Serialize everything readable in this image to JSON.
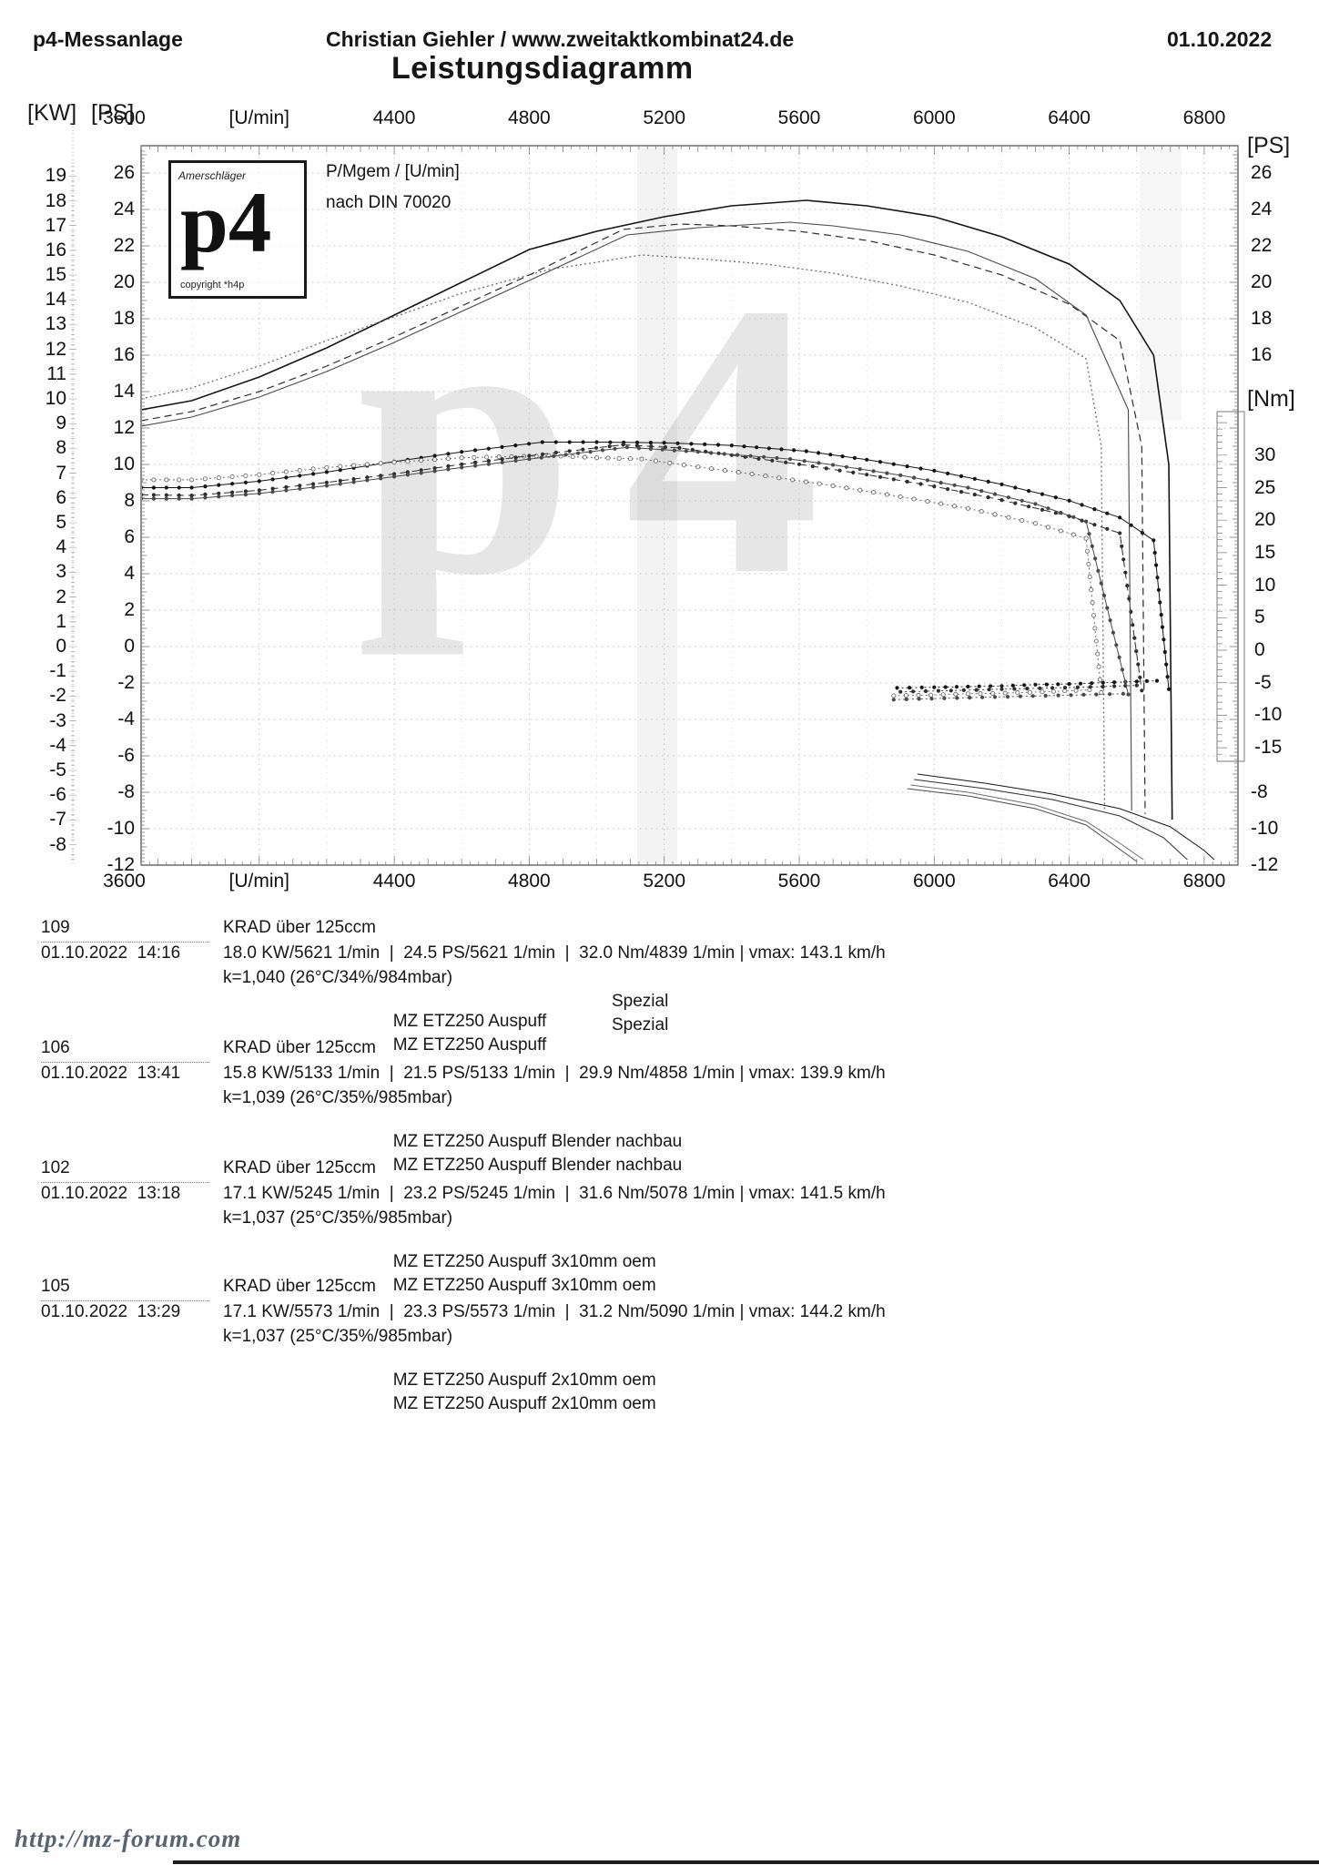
{
  "header": {
    "left": "p4-Messanlage",
    "center": "Christian Giehler / www.zweitaktkombinat24.de",
    "right": "01.10.2022",
    "title": "Leistungsdiagramm"
  },
  "logo": {
    "top": "Amerschläger",
    "main": "p4",
    "bottom": "copyright *h4p"
  },
  "watermark": "p4",
  "footer": {
    "link": "http://mz-forum.com"
  },
  "chart_data": {
    "type": "line",
    "title": "Leistungsdiagramm",
    "legend": [
      "P/Mgem / [U/min]",
      "nach DIN 70020"
    ],
    "legend_position": "top-left",
    "grid": true,
    "x_axis": {
      "label": "[U/min]",
      "min": 3600,
      "max": 6900,
      "tick_labels": [
        "3600",
        "[U/min]",
        "4400",
        "4800",
        "5200",
        "5600",
        "6000",
        "6400",
        "6800"
      ],
      "tick_rpm": [
        3600,
        4000,
        4400,
        4800,
        5200,
        5600,
        6000,
        6400,
        6800
      ]
    },
    "y_axis_kw": {
      "label": "[KW]",
      "ticks": [
        19,
        18,
        17,
        16,
        15,
        14,
        13,
        12,
        11,
        10,
        9,
        8,
        7,
        6,
        5,
        4,
        3,
        2,
        1,
        0,
        -1,
        -2,
        -3,
        -4,
        -5,
        -6,
        -7,
        -8
      ]
    },
    "y_axis_ps": {
      "label": "[PS]",
      "min": -12,
      "max": 26,
      "ticks_left": [
        26,
        24,
        22,
        20,
        18,
        16,
        14,
        12,
        10,
        8,
        6,
        4,
        2,
        0,
        -2,
        -4,
        -6,
        -8,
        -10,
        -12
      ],
      "ticks_right_top": [
        26,
        24,
        22,
        20,
        18,
        16
      ],
      "ticks_right_bottom": [
        -8,
        -10,
        -12
      ]
    },
    "y_axis_nm": {
      "label": "[Nm]",
      "ticks": [
        30,
        25,
        20,
        15,
        10,
        5,
        0,
        -5,
        -10,
        -15
      ]
    },
    "series": [
      {
        "run": "109",
        "name": "MZ ETZ250 Auspuff Spezial",
        "color": "#141414",
        "dash": "",
        "width": 1.6,
        "marker": "filled",
        "peak": {
          "kw": 18.0,
          "kw_rpm": 5621,
          "ps": 24.5,
          "ps_rpm": 5621,
          "nm": 32.0,
          "nm_rpm": 4839,
          "vmax_kmh": 143.1
        },
        "power_rpm": [
          3650,
          3800,
          4000,
          4200,
          4400,
          4600,
          4800,
          5000,
          5200,
          5400,
          5621,
          5800,
          6000,
          6200,
          6400,
          6550,
          6650,
          6695,
          6705
        ],
        "power_ps": [
          13.0,
          13.5,
          14.8,
          16.4,
          18.2,
          20.0,
          21.8,
          22.8,
          23.6,
          24.2,
          24.5,
          24.2,
          23.6,
          22.5,
          21.0,
          19.0,
          16.0,
          10.0,
          -9.5
        ],
        "torque_rpm": [
          3650,
          3800,
          4000,
          4200,
          4400,
          4600,
          4839,
          5000,
          5200,
          5400,
          5621,
          5800,
          6000,
          6200,
          6400,
          6550,
          6650,
          6695
        ],
        "torque_nm": [
          25.0,
          25.0,
          26.0,
          27.4,
          29.0,
          30.5,
          32.0,
          32.0,
          31.9,
          31.5,
          30.6,
          29.3,
          27.6,
          25.5,
          23.0,
          20.4,
          16.9,
          -6.0
        ],
        "drag_torque_rpm": [
          5890,
          6000,
          6100,
          6200,
          6300,
          6400,
          6500,
          6600,
          6660
        ],
        "drag_torque_nm": [
          -5.8,
          -5.7,
          -5.6,
          -5.5,
          -5.3,
          -5.2,
          -5.0,
          -4.8,
          -4.7
        ],
        "drag_power_rpm": [
          5950,
          6150,
          6350,
          6550,
          6700,
          6800,
          6830
        ],
        "drag_power_ps": [
          -7.0,
          -7.5,
          -8.1,
          -8.9,
          -9.9,
          -11.2,
          -11.7
        ]
      },
      {
        "run": "106",
        "name": "MZ ETZ250 Auspuff Blender nachbau",
        "color": "#6e6e6e",
        "dash": "2 3",
        "width": 1.3,
        "marker": "open",
        "peak": {
          "kw": 15.8,
          "kw_rpm": 5133,
          "ps": 21.5,
          "ps_rpm": 5133,
          "nm": 29.9,
          "nm_rpm": 4858,
          "vmax_kmh": 139.9
        },
        "power_rpm": [
          3650,
          3800,
          4000,
          4200,
          4400,
          4600,
          4858,
          5000,
          5133,
          5300,
          5500,
          5700,
          5900,
          6100,
          6300,
          6450,
          6495,
          6505
        ],
        "power_ps": [
          13.6,
          14.2,
          15.4,
          16.8,
          18.1,
          19.4,
          20.7,
          21.1,
          21.5,
          21.3,
          21.0,
          20.5,
          19.8,
          18.9,
          17.5,
          15.8,
          11.0,
          -9.0
        ],
        "torque_rpm": [
          3650,
          3800,
          4000,
          4200,
          4400,
          4600,
          4858,
          5000,
          5133,
          5300,
          5500,
          5700,
          5900,
          6100,
          6300,
          6450,
          6495
        ],
        "torque_nm": [
          26.2,
          26.2,
          27.0,
          28.1,
          28.9,
          29.6,
          29.9,
          29.6,
          29.4,
          28.2,
          26.8,
          25.3,
          23.6,
          21.8,
          19.5,
          17.2,
          -6.5
        ],
        "drag_torque_rpm": [
          5880,
          5990,
          6100,
          6210,
          6320,
          6420,
          6460
        ],
        "drag_torque_nm": [
          -7.0,
          -6.9,
          -6.7,
          -6.6,
          -6.4,
          -6.2,
          -6.1
        ],
        "drag_power_rpm": [
          5930,
          6100,
          6300,
          6450,
          6550,
          6620
        ],
        "drag_power_ps": [
          -7.6,
          -8.0,
          -8.7,
          -9.6,
          -10.8,
          -11.7
        ]
      },
      {
        "run": "102",
        "name": "MZ ETZ250 Auspuff 3x10mm oem",
        "color": "#2e2e2e",
        "dash": "8 5",
        "width": 1.2,
        "marker": "filled",
        "peak": {
          "kw": 17.1,
          "kw_rpm": 5245,
          "ps": 23.2,
          "ps_rpm": 5245,
          "nm": 31.6,
          "nm_rpm": 5078,
          "vmax_kmh": 141.5
        },
        "power_rpm": [
          3650,
          3800,
          4000,
          4200,
          4400,
          4600,
          4800,
          5078,
          5245,
          5400,
          5600,
          5800,
          6000,
          6200,
          6400,
          6550,
          6615,
          6625
        ],
        "power_ps": [
          12.4,
          12.9,
          14.0,
          15.4,
          17.0,
          18.7,
          20.4,
          22.9,
          23.2,
          23.1,
          22.8,
          22.3,
          21.5,
          20.4,
          18.8,
          16.8,
          11.0,
          -9.2
        ],
        "torque_rpm": [
          3650,
          3800,
          4000,
          4200,
          4400,
          4600,
          4800,
          5078,
          5245,
          5400,
          5600,
          5800,
          6000,
          6200,
          6400,
          6550,
          6615
        ],
        "torque_nm": [
          23.9,
          23.8,
          24.6,
          25.8,
          27.1,
          28.6,
          29.9,
          31.6,
          31.1,
          30.0,
          28.6,
          27.0,
          25.2,
          23.1,
          20.6,
          18.0,
          -6.2
        ],
        "drag_torque_rpm": [
          5900,
          6050,
          6200,
          6350,
          6500,
          6600
        ],
        "drag_torque_nm": [
          -6.4,
          -6.2,
          -6.0,
          -5.8,
          -5.6,
          -5.4
        ],
        "drag_power_rpm": [
          5940,
          6150,
          6350,
          6550,
          6680,
          6750
        ],
        "drag_power_ps": [
          -7.3,
          -7.8,
          -8.4,
          -9.3,
          -10.5,
          -11.7
        ]
      },
      {
        "run": "105",
        "name": "MZ ETZ250 Auspuff 2x10mm oem",
        "color": "#4a4a4a",
        "dash": "",
        "width": 1.1,
        "marker": "filled",
        "peak": {
          "kw": 17.1,
          "kw_rpm": 5573,
          "ps": 23.3,
          "ps_rpm": 5573,
          "nm": 31.2,
          "nm_rpm": 5090,
          "vmax_kmh": 144.2
        },
        "power_rpm": [
          3650,
          3800,
          4000,
          4200,
          4400,
          4600,
          4800,
          5090,
          5300,
          5573,
          5700,
          5900,
          6100,
          6300,
          6450,
          6575,
          6585
        ],
        "power_ps": [
          12.1,
          12.6,
          13.7,
          15.1,
          16.7,
          18.4,
          20.1,
          22.6,
          23.0,
          23.3,
          23.1,
          22.6,
          21.7,
          20.2,
          18.2,
          13.0,
          -9.0
        ],
        "torque_rpm": [
          3650,
          3800,
          4000,
          4200,
          4400,
          4600,
          4800,
          5090,
          5300,
          5573,
          5700,
          5900,
          6100,
          6300,
          6450,
          6575
        ],
        "torque_nm": [
          23.3,
          23.3,
          24.1,
          25.3,
          26.7,
          28.1,
          29.4,
          31.2,
          30.5,
          29.4,
          28.5,
          26.9,
          25.0,
          22.5,
          19.8,
          -6.8
        ],
        "drag_torque_rpm": [
          5880,
          6030,
          6180,
          6330,
          6480,
          6560
        ],
        "drag_torque_nm": [
          -7.6,
          -7.4,
          -7.2,
          -7.0,
          -6.8,
          -6.7
        ],
        "drag_power_rpm": [
          5920,
          6100,
          6300,
          6450,
          6540,
          6600
        ],
        "drag_power_ps": [
          -7.8,
          -8.2,
          -8.9,
          -9.8,
          -11.0,
          -11.8
        ]
      }
    ]
  },
  "runs": [
    {
      "id": "109",
      "datetime": "01.10.2022  14:16",
      "category": "KRAD über 125ccm",
      "result_line": "18.0 KW/5621 1/min  |  24.5 PS/5621 1/min  |  32.0 Nm/4839 1/min | vmax: 143.1 km/h",
      "k_line": "k=1,040 (26°C/34%/984mbar)",
      "exhaust": "MZ ETZ250 Auspuff",
      "variant": "Spezial"
    },
    {
      "id": "106",
      "datetime": "01.10.2022  13:41",
      "category": "KRAD über 125ccm",
      "result_line": "15.8 KW/5133 1/min  |  21.5 PS/5133 1/min  |  29.9 Nm/4858 1/min | vmax: 139.9 km/h",
      "k_line": "k=1,039 (26°C/35%/985mbar)",
      "exhaust": "MZ ETZ250 Auspuff Blender nachbau",
      "variant": ""
    },
    {
      "id": "102",
      "datetime": "01.10.2022  13:18",
      "category": "KRAD über 125ccm",
      "result_line": "17.1 KW/5245 1/min  |  23.2 PS/5245 1/min  |  31.6 Nm/5078 1/min | vmax: 141.5 km/h",
      "k_line": "k=1,037 (25°C/35%/985mbar)",
      "exhaust": "MZ ETZ250 Auspuff 3x10mm oem",
      "variant": ""
    },
    {
      "id": "105",
      "datetime": "01.10.2022  13:29",
      "category": "KRAD über 125ccm",
      "result_line": "17.1 KW/5573 1/min  |  23.3 PS/5573 1/min  |  31.2 Nm/5090 1/min | vmax: 144.2 km/h",
      "k_line": "k=1,037 (25°C/35%/985mbar)",
      "exhaust": "MZ ETZ250 Auspuff 2x10mm oem",
      "variant": ""
    }
  ]
}
